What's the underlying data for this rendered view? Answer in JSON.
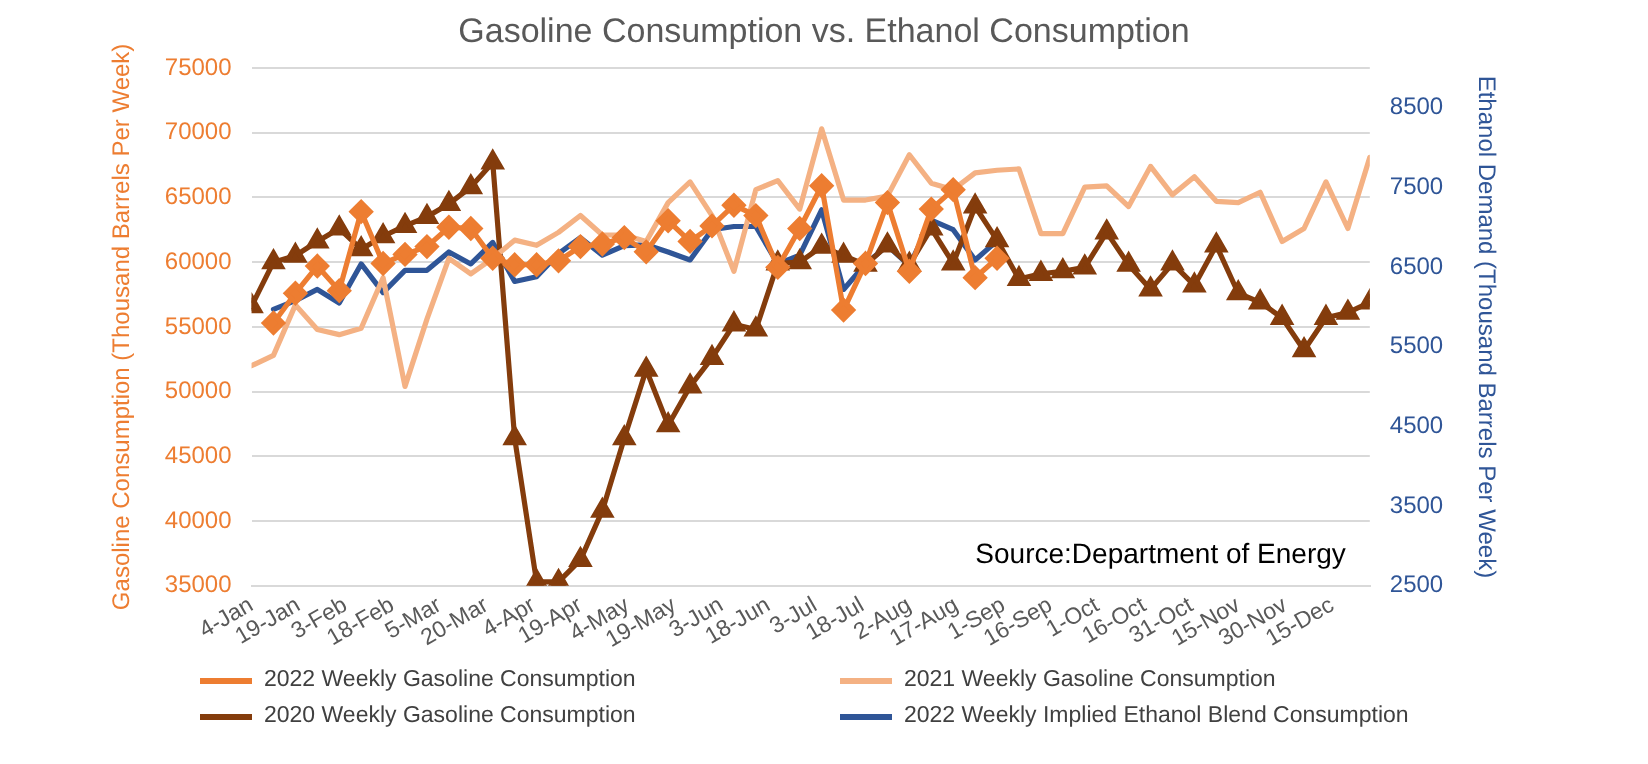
{
  "chart_data": {
    "type": "line",
    "title": "Gasoline Consumption vs. Ethanol Consumption",
    "ylabel": "Gasoline Consumption (Thousand Barrels Per Week)",
    "y2label": "Ethanol Demand (Thousand Barrels Per Week)",
    "annotations": [
      "Source:Department of Energy"
    ],
    "x": [
      "--01-04",
      "--01-11",
      "--01-18",
      "--01-25",
      "--02-01",
      "--02-08",
      "--02-15",
      "--02-22",
      "--03-01",
      "--03-08",
      "--03-15",
      "--03-22",
      "--03-29",
      "--04-05",
      "--04-12",
      "--04-19",
      "--04-26",
      "--05-03",
      "--05-10",
      "--05-17",
      "--05-24",
      "--05-31",
      "--06-07",
      "--06-14",
      "--06-21",
      "--06-28",
      "--07-05",
      "--07-12",
      "--07-19",
      "--07-26",
      "--08-02",
      "--08-09",
      "--08-16",
      "--08-23",
      "--08-30",
      "--09-06",
      "--09-13",
      "--09-20",
      "--09-27",
      "--10-04",
      "--10-11",
      "--10-18",
      "--10-25",
      "--11-01",
      "--11-08",
      "--11-15",
      "--11-22",
      "--11-29",
      "--12-06",
      "--12-13",
      "--12-20",
      "--12-27"
    ],
    "series": [
      {
        "name": "2022 Weekly Gasoline Consumption",
        "color": "#ed7d31",
        "marker": "diamond",
        "values": [
          null,
          55300,
          57600,
          59700,
          57800,
          63900,
          59900,
          60600,
          61200,
          62700,
          62600,
          60300,
          59800,
          59800,
          60100,
          61200,
          61400,
          61900,
          60800,
          63200,
          61600,
          62800,
          64400,
          63600,
          59600,
          62600,
          65900,
          56300,
          59900,
          64600,
          59300,
          64100,
          65600,
          58800,
          60300,
          null,
          null,
          null,
          null,
          null,
          null,
          null,
          null,
          null,
          null,
          null,
          null,
          null,
          null,
          null,
          null,
          null
        ]
      },
      {
        "name": "2021 Weekly Gasoline Consumption",
        "color": "#f4b183",
        "marker": "none",
        "values": [
          52000,
          52800,
          56700,
          54800,
          54400,
          54900,
          58800,
          50400,
          55600,
          60300,
          59100,
          60300,
          61700,
          61300,
          62300,
          63600,
          62100,
          62100,
          61600,
          64600,
          66200,
          63600,
          59300,
          65600,
          66300,
          64100,
          70300,
          64800,
          64800,
          65100,
          68300,
          66100,
          65600,
          66900,
          67100,
          67200,
          62200,
          62200,
          65800,
          65900,
          64300,
          67400,
          65200,
          66600,
          64700,
          64600,
          65400,
          61600,
          62600,
          66200,
          62600,
          68100
        ]
      },
      {
        "name": "2020 Weekly Gasoline Consumption",
        "color": "#843c0c",
        "marker": "triangle",
        "values": [
          56600,
          60000,
          60500,
          61600,
          62600,
          61000,
          62000,
          62800,
          63500,
          64500,
          65800,
          67700,
          46400,
          35300,
          35300,
          37000,
          40800,
          46400,
          51700,
          47400,
          50400,
          52600,
          55200,
          54800,
          59900,
          60000,
          61200,
          60500,
          59800,
          61300,
          59800,
          62600,
          59900,
          64300,
          61700,
          58700,
          59100,
          59300,
          59600,
          62300,
          59800,
          57900,
          59900,
          58200,
          61300,
          57600,
          56900,
          55700,
          53200,
          55700,
          56100,
          56900
        ]
      },
      {
        "name": "2022 Weekly Implied Ethanol Blend Consumption",
        "color": "#2f5597",
        "marker": "none",
        "axis": "y2",
        "values": [
          null,
          5970,
          6080,
          6220,
          6050,
          6540,
          6180,
          6460,
          6460,
          6690,
          6540,
          6810,
          6320,
          6380,
          6670,
          6870,
          6650,
          6770,
          6780,
          6690,
          6590,
          6970,
          7010,
          7010,
          6540,
          6650,
          7220,
          6220,
          6540,
          6770,
          6520,
          7090,
          6970,
          6590,
          6830,
          null,
          null,
          null,
          null,
          null,
          null,
          null,
          null,
          null,
          null,
          null,
          null,
          null,
          null,
          null,
          null,
          null
        ]
      }
    ],
    "xlim": [
      "--01-04",
      "--12-27"
    ],
    "xticks": [
      {
        "value": "--01-04",
        "label": "4-Jan"
      },
      {
        "value": "--01-19",
        "label": "19-Jan"
      },
      {
        "value": "--02-03",
        "label": "3-Feb"
      },
      {
        "value": "--02-18",
        "label": "18-Feb"
      },
      {
        "value": "--03-05",
        "label": "5-Mar"
      },
      {
        "value": "--03-20",
        "label": "20-Mar"
      },
      {
        "value": "--04-04",
        "label": "4-Apr"
      },
      {
        "value": "--04-19",
        "label": "19-Apr"
      },
      {
        "value": "--05-04",
        "label": "4-May"
      },
      {
        "value": "--05-19",
        "label": "19-May"
      },
      {
        "value": "--06-03",
        "label": "3-Jun"
      },
      {
        "value": "--06-18",
        "label": "18-Jun"
      },
      {
        "value": "--07-03",
        "label": "3-Jul"
      },
      {
        "value": "--07-18",
        "label": "18-Jul"
      },
      {
        "value": "--08-02",
        "label": "2-Aug"
      },
      {
        "value": "--08-17",
        "label": "17-Aug"
      },
      {
        "value": "--09-01",
        "label": "1-Sep"
      },
      {
        "value": "--09-16",
        "label": "16-Sep"
      },
      {
        "value": "--10-01",
        "label": "1-Oct"
      },
      {
        "value": "--10-16",
        "label": "16-Oct"
      },
      {
        "value": "--10-31",
        "label": "31-Oct"
      },
      {
        "value": "--11-15",
        "label": "15-Nov"
      },
      {
        "value": "--11-30",
        "label": "30-Nov"
      },
      {
        "value": "--12-15",
        "label": "15-Dec"
      }
    ],
    "ylim": [
      35000,
      75000
    ],
    "yticks": [
      35000,
      40000,
      45000,
      50000,
      55000,
      60000,
      65000,
      70000,
      75000
    ],
    "y2lim": [
      2500,
      9000
    ],
    "y2ticks": [
      2500,
      3500,
      4500,
      5500,
      6500,
      7500,
      8500
    ],
    "grid": "y",
    "legend": "bottom"
  }
}
